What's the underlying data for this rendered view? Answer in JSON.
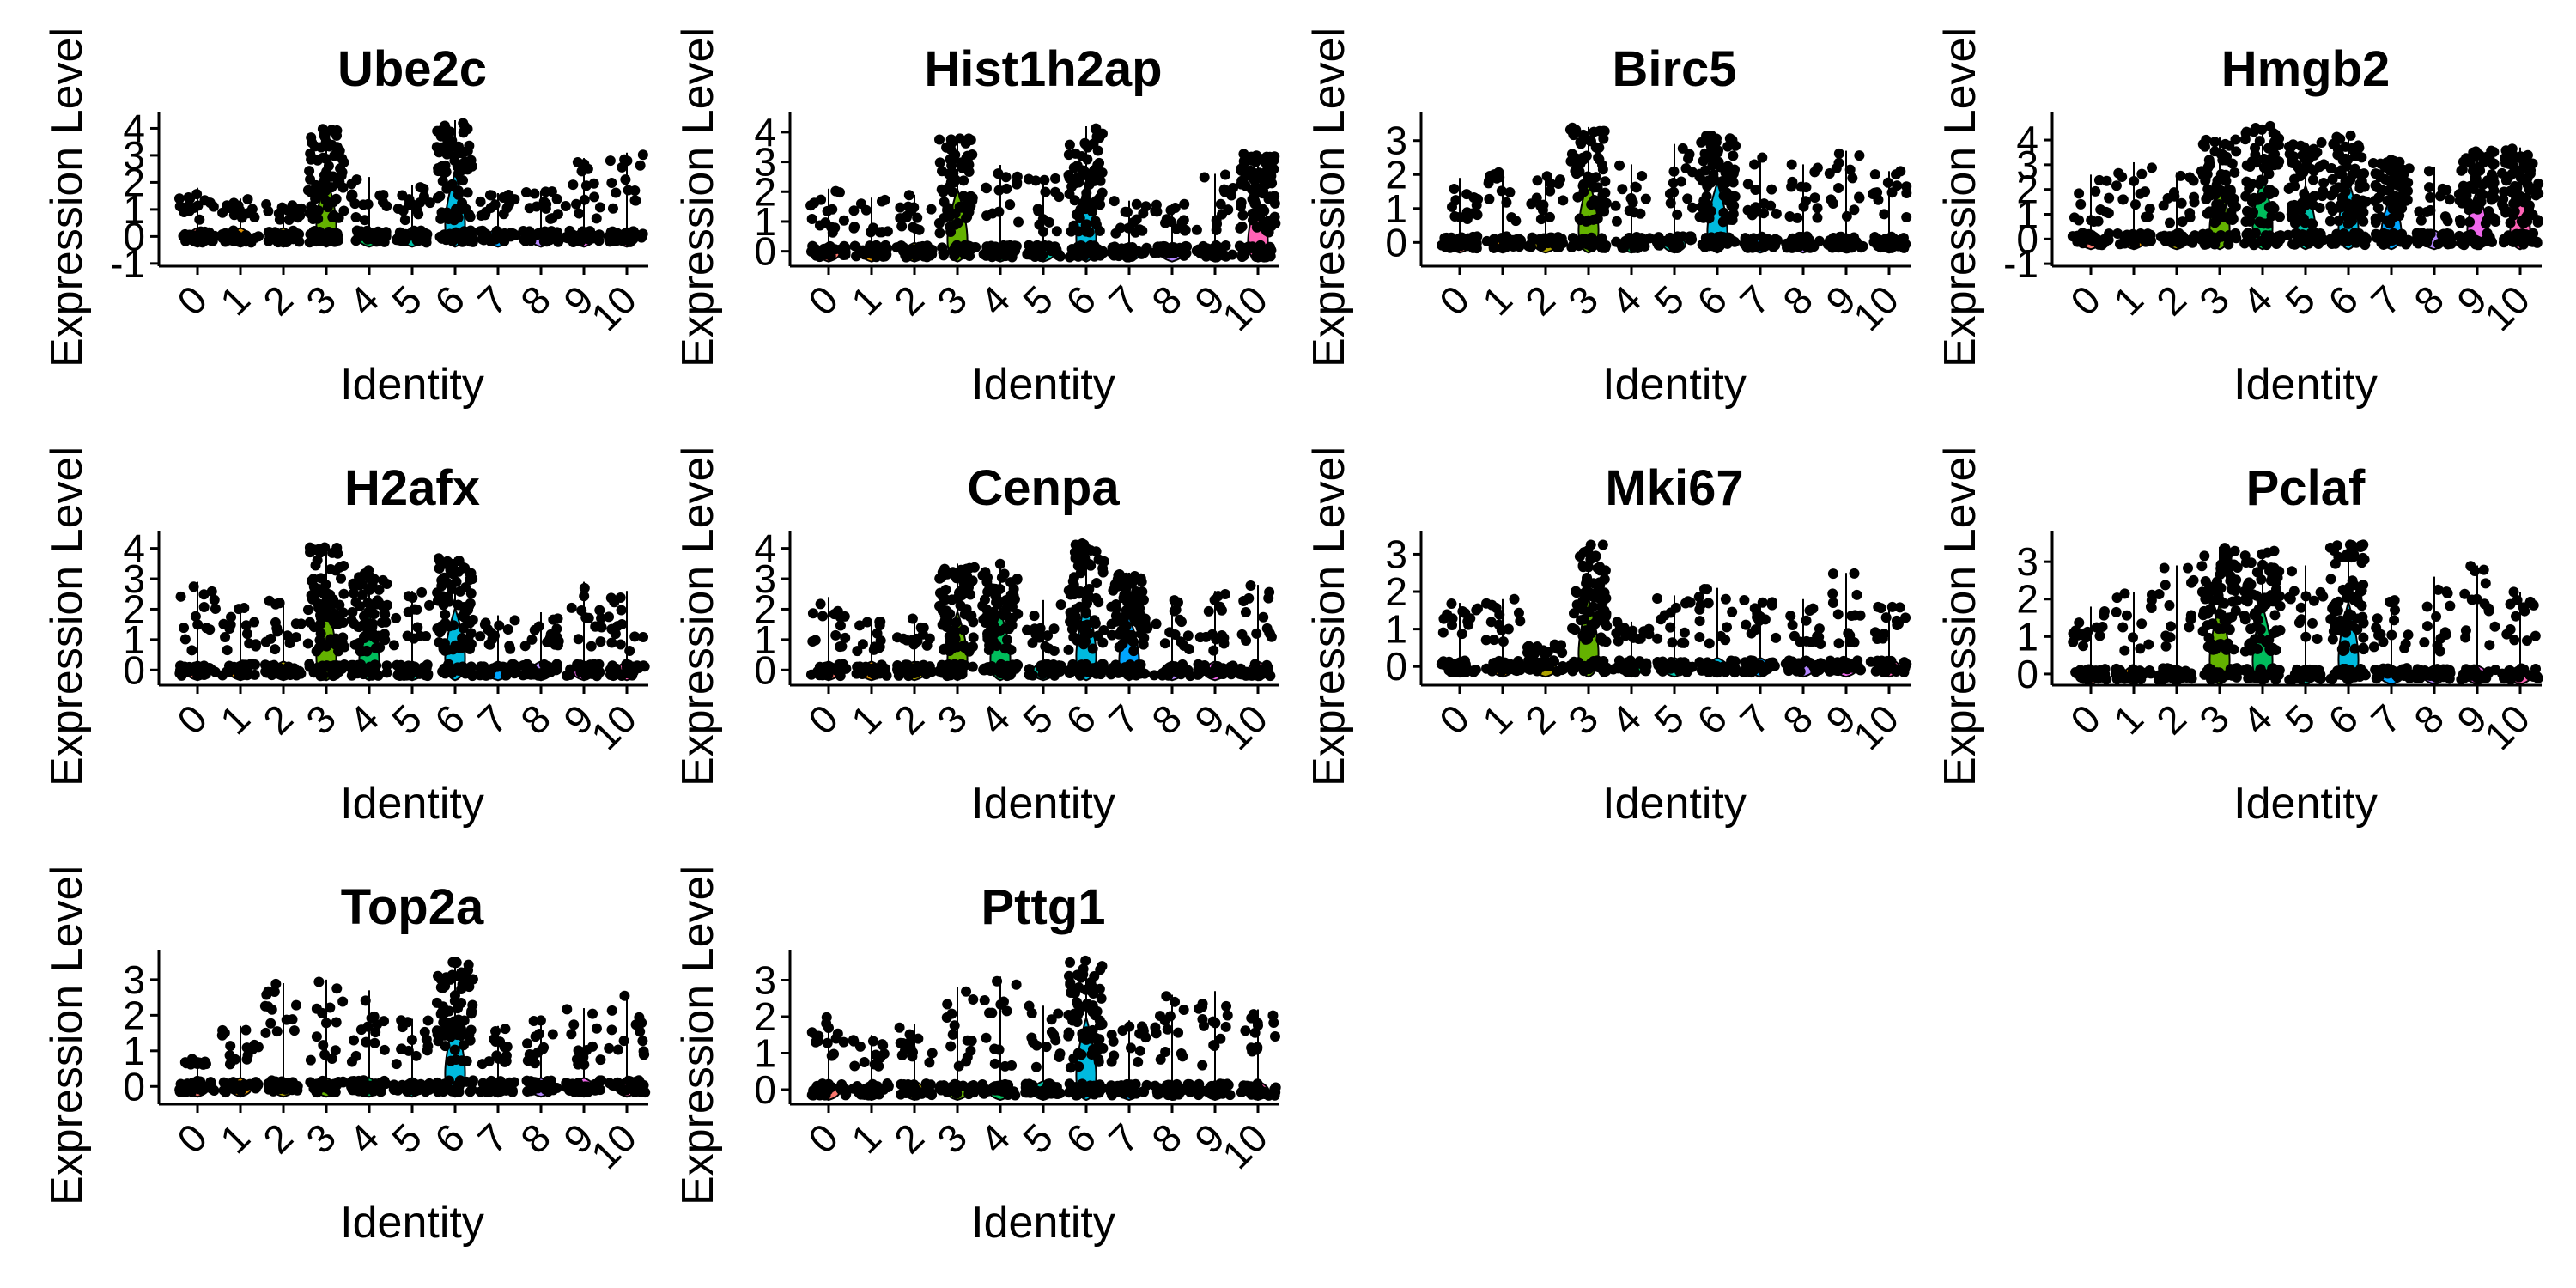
{
  "chart_data": [
    {
      "type": "violin",
      "title": "Ube2c",
      "xlabel": "Identity",
      "ylabel": "Expression Level",
      "categories": [
        "0",
        "1",
        "2",
        "3",
        "4",
        "5",
        "6",
        "7",
        "8",
        "9",
        "10"
      ],
      "y_ticks": [
        "-1",
        "0",
        "1",
        "2",
        "3",
        "4"
      ],
      "ylim": [
        -1.1,
        4.3
      ],
      "series": [
        {
          "name": "",
          "values": [
            1.8,
            1.4,
            1.2,
            4.0,
            2.2,
            1.9,
            4.3,
            1.6,
            1.7,
            2.9,
            3.1
          ]
        }
      ]
    },
    {
      "type": "violin",
      "title": "Hist1h2ap",
      "xlabel": "Identity",
      "ylabel": "Expression Level",
      "categories": [
        "0",
        "1",
        "2",
        "3",
        "4",
        "5",
        "6",
        "7",
        "8",
        "9",
        "10"
      ],
      "y_ticks": [
        "0",
        "1",
        "2",
        "3",
        "4"
      ],
      "ylim": [
        -0.5,
        4.4
      ],
      "series": [
        {
          "name": "",
          "values": [
            2.1,
            1.8,
            1.9,
            3.8,
            2.9,
            2.5,
            4.2,
            1.7,
            1.6,
            2.6,
            3.3
          ]
        }
      ]
    },
    {
      "type": "violin",
      "title": "Birc5",
      "xlabel": "Identity",
      "ylabel": "Expression Level",
      "categories": [
        "0",
        "1",
        "2",
        "3",
        "4",
        "5",
        "6",
        "7",
        "8",
        "9",
        "10"
      ],
      "y_ticks": [
        "0",
        "1",
        "2",
        "3"
      ],
      "ylim": [
        -0.7,
        3.6
      ],
      "series": [
        {
          "name": "",
          "values": [
            1.9,
            2.1,
            2.0,
            3.4,
            2.3,
            2.9,
            3.2,
            2.6,
            2.3,
            2.7,
            2.1
          ]
        }
      ]
    },
    {
      "type": "violin",
      "title": "Hmgb2",
      "xlabel": "Identity",
      "ylabel": "Expression Level",
      "categories": [
        "0",
        "1",
        "2",
        "3",
        "4",
        "5",
        "6",
        "7",
        "8",
        "9",
        "10"
      ],
      "y_ticks": [
        "-1",
        "0",
        "1",
        "2",
        "3",
        "4"
      ],
      "ylim": [
        -1.1,
        4.8
      ],
      "series": [
        {
          "name": "",
          "values": [
            2.6,
            3.1,
            2.7,
            4.1,
            4.6,
            3.9,
            4.3,
            3.2,
            2.9,
            3.6,
            3.7
          ]
        }
      ]
    },
    {
      "type": "violin",
      "title": "H2afx",
      "xlabel": "Identity",
      "ylabel": "Expression Level",
      "categories": [
        "0",
        "1",
        "2",
        "3",
        "4",
        "5",
        "6",
        "7",
        "8",
        "9",
        "10"
      ],
      "y_ticks": [
        "0",
        "1",
        "2",
        "3",
        "4"
      ],
      "ylim": [
        -0.5,
        4.3
      ],
      "series": [
        {
          "name": "",
          "values": [
            2.9,
            2.1,
            2.3,
            4.1,
            3.3,
            2.6,
            3.7,
            1.8,
            1.9,
            2.9,
            2.6
          ]
        }
      ]
    },
    {
      "type": "violin",
      "title": "Cenpa",
      "xlabel": "Identity",
      "ylabel": "Expression Level",
      "categories": [
        "0",
        "1",
        "2",
        "3",
        "4",
        "5",
        "6",
        "7",
        "8",
        "9",
        "10"
      ],
      "y_ticks": [
        "0",
        "1",
        "2",
        "3",
        "4"
      ],
      "ylim": [
        -0.5,
        4.3
      ],
      "series": [
        {
          "name": "",
          "values": [
            2.4,
            1.6,
            1.8,
            3.5,
            3.5,
            2.3,
            4.2,
            3.2,
            2.3,
            2.6,
            2.8
          ]
        }
      ]
    },
    {
      "type": "violin",
      "title": "Mki67",
      "xlabel": "Identity",
      "ylabel": "Expression Level",
      "categories": [
        "0",
        "1",
        "2",
        "3",
        "4",
        "5",
        "6",
        "7",
        "8",
        "9",
        "10"
      ],
      "y_ticks": [
        "0",
        "1",
        "2",
        "3"
      ],
      "ylim": [
        -0.5,
        3.4
      ],
      "series": [
        {
          "name": "",
          "values": [
            1.7,
            1.8,
            0.3,
            3.3,
            1.2,
            1.9,
            2.1,
            1.8,
            1.8,
            2.5,
            1.6
          ]
        }
      ]
    },
    {
      "type": "violin",
      "title": "Pclaf",
      "xlabel": "Identity",
      "ylabel": "Expression Level",
      "categories": [
        "0",
        "1",
        "2",
        "3",
        "4",
        "5",
        "6",
        "7",
        "8",
        "9",
        "10"
      ],
      "y_ticks": [
        "0",
        "1",
        "2",
        "3"
      ],
      "ylim": [
        -0.3,
        3.6
      ],
      "series": [
        {
          "name": "",
          "values": [
            1.8,
            2.2,
            2.9,
            3.4,
            3.3,
            2.9,
            3.5,
            2.0,
            2.6,
            2.9,
            2.2
          ]
        }
      ]
    },
    {
      "type": "violin",
      "title": "Top2a",
      "xlabel": "Identity",
      "ylabel": "Expression Level",
      "categories": [
        "0",
        "1",
        "2",
        "3",
        "4",
        "5",
        "6",
        "7",
        "8",
        "9",
        "10"
      ],
      "y_ticks": [
        "0",
        "1",
        "2",
        "3"
      ],
      "ylim": [
        -0.5,
        3.6
      ],
      "series": [
        {
          "name": "",
          "values": [
            0.8,
            1.7,
            2.9,
            3.0,
            2.7,
            1.9,
            3.5,
            1.7,
            1.9,
            2.2,
            2.6
          ]
        }
      ]
    },
    {
      "type": "violin",
      "title": "Pttg1",
      "xlabel": "Identity",
      "ylabel": "Expression Level",
      "categories": [
        "0",
        "1",
        "2",
        "3",
        "4",
        "5",
        "6",
        "7",
        "8",
        "9",
        "10"
      ],
      "y_ticks": [
        "0",
        "1",
        "2",
        "3"
      ],
      "ylim": [
        -0.4,
        3.6
      ],
      "series": [
        {
          "name": "",
          "values": [
            2.0,
            1.5,
            1.8,
            2.8,
            3.1,
            2.3,
            3.6,
            1.9,
            2.6,
            2.7,
            2.2
          ]
        }
      ]
    }
  ],
  "palette": [
    "#F8766D",
    "#DB8E00",
    "#AEA200",
    "#64B200",
    "#00BD5C",
    "#00C1A7",
    "#00BADE",
    "#00A6FF",
    "#B385FF",
    "#EF67EB",
    "#FF63B6"
  ]
}
